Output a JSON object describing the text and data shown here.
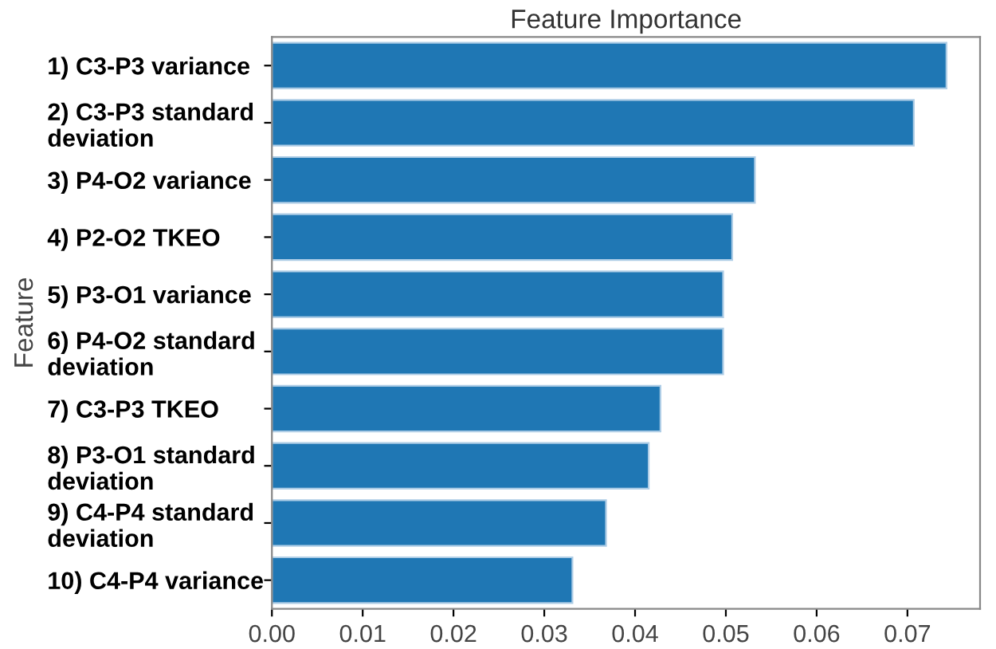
{
  "chart_data": {
    "type": "bar",
    "orientation": "horizontal",
    "title": "Feature Importance",
    "ylabel": "Feature",
    "categories": [
      "1) C3-P3 variance",
      "2) C3-P3 standard\ndeviation",
      "3) P4-O2 variance",
      "4) P2-O2 TKEO",
      "5) P3-O1 variance",
      "6) P4-O2 standard\ndeviation",
      "7) C3-P3 TKEO",
      "8) P3-O1 standard\ndeviation",
      "9) C4-P4 standard\ndeviation",
      "10) C4-P4 variance"
    ],
    "values": [
      0.0743,
      0.0707,
      0.0532,
      0.0507,
      0.0497,
      0.0497,
      0.0428,
      0.0415,
      0.0368,
      0.0331
    ],
    "color": "#1f77b4",
    "xlim": [
      0,
      0.078
    ],
    "xticks": [
      {
        "value": 0,
        "label": "0.00"
      },
      {
        "value": 0.01,
        "label": "0.01"
      },
      {
        "value": 0.02,
        "label": "0.02"
      },
      {
        "value": 0.03,
        "label": "0.03"
      },
      {
        "value": 0.04,
        "label": "0.04"
      },
      {
        "value": 0.05,
        "label": "0.05"
      },
      {
        "value": 0.06,
        "label": "0.06"
      },
      {
        "value": 0.07,
        "label": "0.07"
      }
    ],
    "grid": false
  }
}
